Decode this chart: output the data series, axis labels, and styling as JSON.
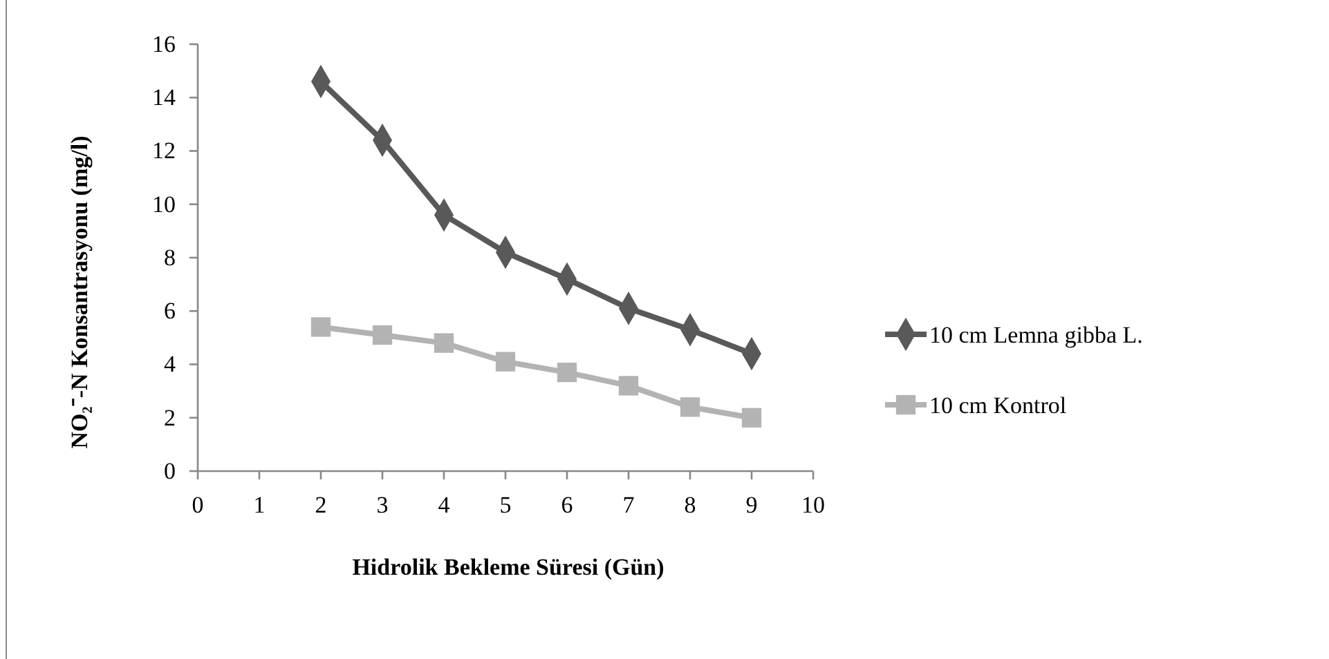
{
  "chart_data": {
    "type": "line",
    "xlabel": "Hidrolik Bekleme Süresi (Gün)",
    "ylabel": "NO₂⁻-N Konsantrasyonu (mg/l)",
    "x": [
      2,
      3,
      4,
      5,
      6,
      7,
      8,
      9
    ],
    "xlim": [
      0,
      10
    ],
    "xticks": [
      0,
      1,
      2,
      3,
      4,
      5,
      6,
      7,
      8,
      9,
      10
    ],
    "ylim": [
      0,
      16
    ],
    "yticks": [
      0,
      2,
      4,
      6,
      8,
      10,
      12,
      14,
      16
    ],
    "grid": false,
    "legend": "right",
    "line_style": "solid",
    "series": [
      {
        "name": "10 cm Lemna gibba L.",
        "color": "#595959",
        "marker": "diamond",
        "values": [
          14.6,
          12.4,
          9.6,
          8.2,
          7.2,
          6.1,
          5.3,
          4.4
        ]
      },
      {
        "name": "10 cm Kontrol",
        "color": "#b3b3b3",
        "marker": "square",
        "values": [
          5.4,
          5.1,
          4.8,
          4.1,
          3.7,
          3.2,
          2.4,
          2.0
        ]
      }
    ]
  }
}
